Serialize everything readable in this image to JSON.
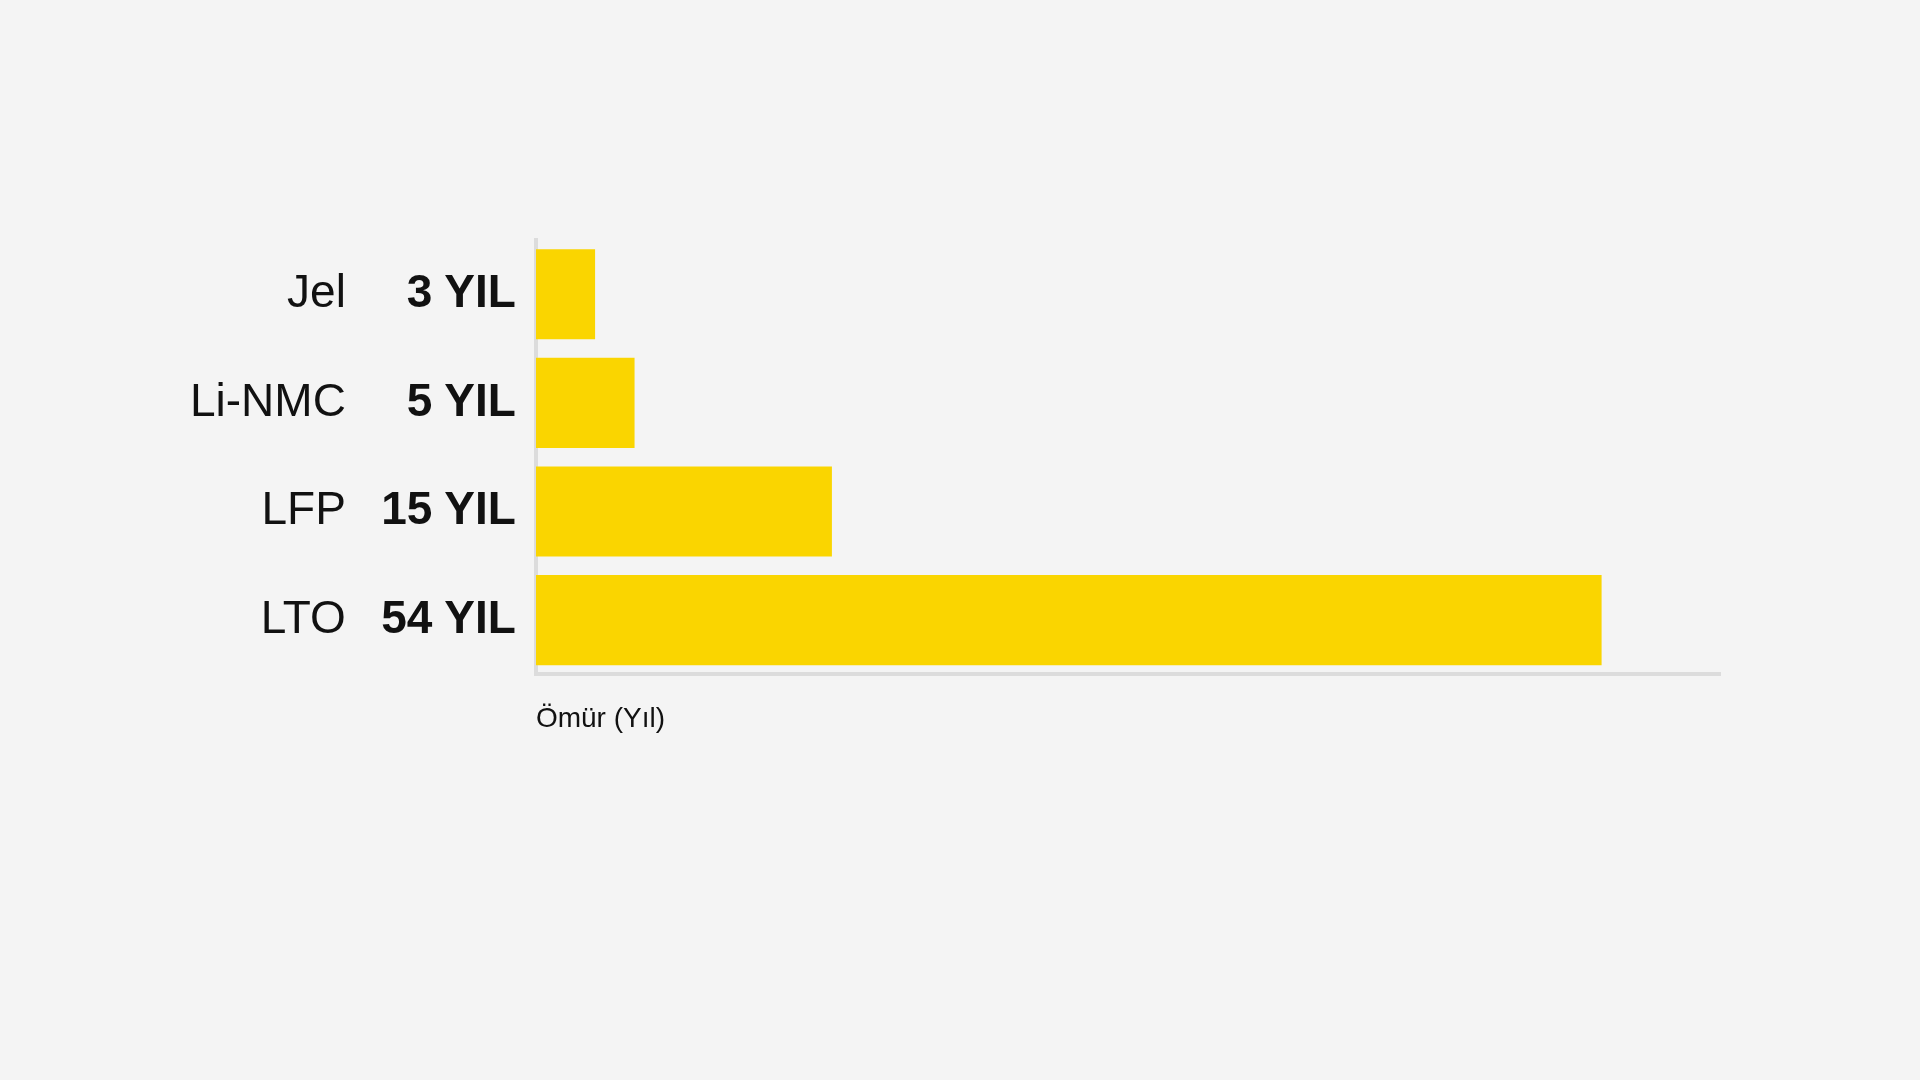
{
  "chart_data": {
    "type": "bar",
    "orientation": "horizontal",
    "xlabel": "Ömür (Yıl)",
    "categories": [
      "Jel",
      "Li-NMC",
      "LFP",
      "LTO"
    ],
    "values": [
      3,
      5,
      15,
      54
    ],
    "color": "#fad500",
    "value_labels": [
      "3 YIL",
      "5 YIL",
      "15 YIL",
      "54 YIL"
    ],
    "grid": false,
    "legend": false
  }
}
